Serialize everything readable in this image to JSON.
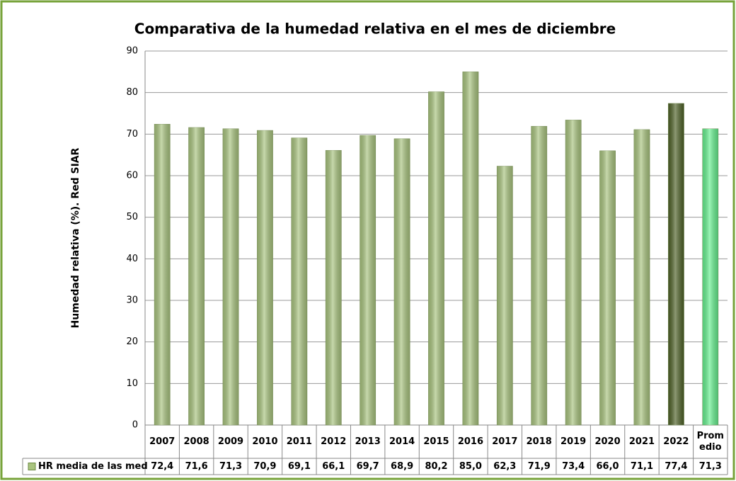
{
  "chart_data": {
    "type": "bar",
    "title": "Comparativa de la humedad relativa en el mes de diciembre",
    "y_label": "Humedad relativa (%). Red SIAR",
    "categories": [
      "2007",
      "2008",
      "2009",
      "2010",
      "2011",
      "2012",
      "2013",
      "2014",
      "2015",
      "2016",
      "2017",
      "2018",
      "2019",
      "2020",
      "2021",
      "2022",
      "Promedio"
    ],
    "series": [
      {
        "name": "HR media de las med",
        "color": "#a9c47f",
        "colors": [
          "#a9c47f",
          "#a9c47f",
          "#a9c47f",
          "#a9c47f",
          "#a9c47f",
          "#a9c47f",
          "#a9c47f",
          "#a9c47f",
          "#a9c47f",
          "#a9c47f",
          "#a9c47f",
          "#a9c47f",
          "#a9c47f",
          "#a9c47f",
          "#a9c47f",
          "#4f6228",
          "#66f08f"
        ],
        "values": [
          72.4,
          71.6,
          71.3,
          70.9,
          69.1,
          66.1,
          69.7,
          68.9,
          80.2,
          85.0,
          62.3,
          71.9,
          73.4,
          66.0,
          71.1,
          77.4,
          71.3
        ],
        "value_labels": [
          "72,4",
          "71,6",
          "71,3",
          "70,9",
          "69,1",
          "66,1",
          "69,7",
          "68,9",
          "80,2",
          "85,0",
          "62,3",
          "71,9",
          "73,4",
          "66,0",
          "71,1",
          "77,4",
          "71,3"
        ]
      }
    ],
    "ylim": [
      0,
      90
    ],
    "yticks": [
      0,
      10,
      20,
      30,
      40,
      50,
      60,
      70,
      80,
      90
    ],
    "grid": true
  }
}
